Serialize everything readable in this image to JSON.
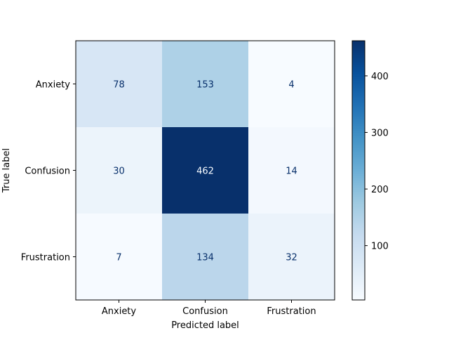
{
  "chart_data": {
    "type": "heatmap",
    "title": "",
    "xlabel": "Predicted label",
    "ylabel": "True label",
    "x_categories": [
      "Anxiety",
      "Confusion",
      "Frustration"
    ],
    "y_categories": [
      "Anxiety",
      "Confusion",
      "Frustration"
    ],
    "values": [
      [
        78,
        153,
        4
      ],
      [
        30,
        462,
        14
      ],
      [
        7,
        134,
        32
      ]
    ],
    "value_range": [
      4,
      462
    ],
    "colormap": "Blues",
    "colormap_stops": [
      "#f7fbff",
      "#deebf7",
      "#c6dbef",
      "#9ecae1",
      "#6baed6",
      "#4292c6",
      "#2171b5",
      "#08519c",
      "#08306b"
    ],
    "text_color_light_cell": "#08306b",
    "text_color_dark_cell": "#f7fbff",
    "colorbar": {
      "ticks": [
        100,
        200,
        300,
        400
      ]
    },
    "grid": false,
    "legend": "none"
  }
}
